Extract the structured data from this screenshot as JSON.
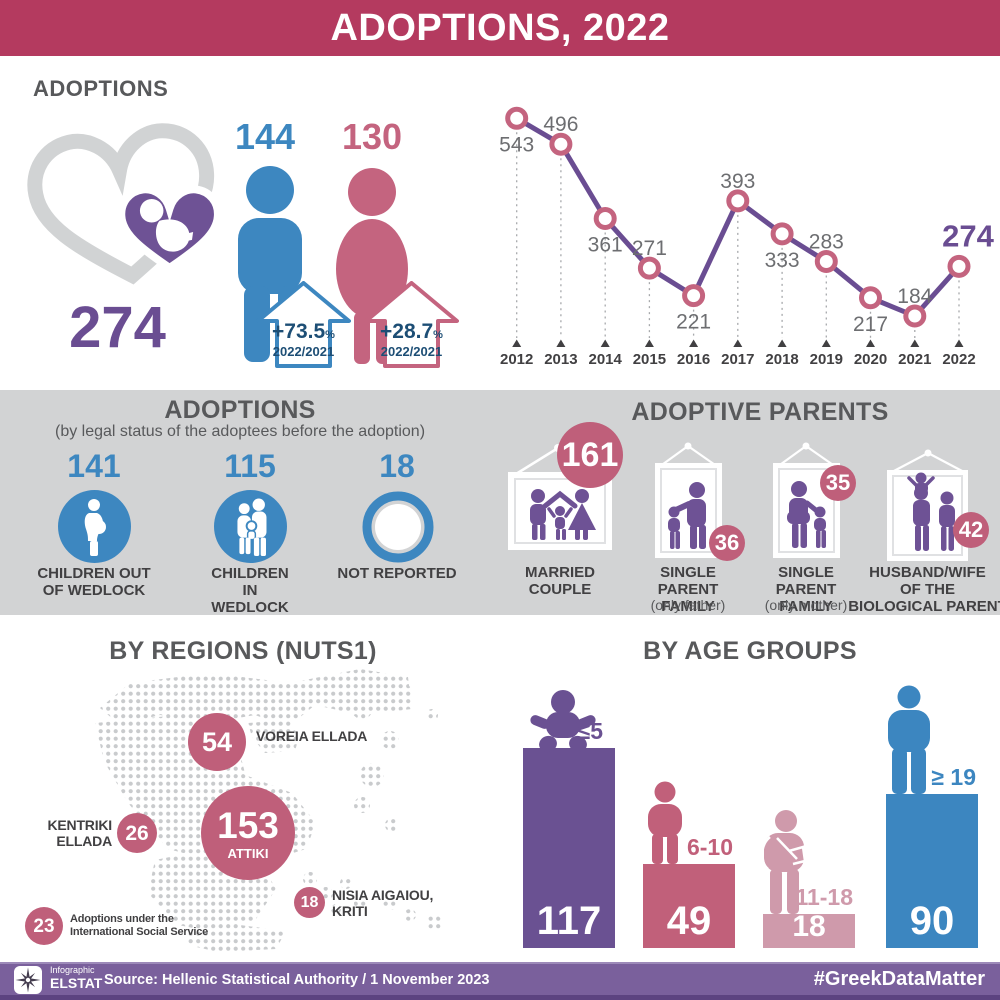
{
  "header": {
    "title": "ADOPTIONS, 2022"
  },
  "overview": {
    "section_label": "ADOPTIONS",
    "total": "274",
    "male": {
      "value": "144",
      "change": "+73.5",
      "pct": "%",
      "period": "2022/2021"
    },
    "female": {
      "value": "130",
      "change": "+28.7",
      "pct": "%",
      "period": "2022/2021"
    }
  },
  "chart_data": [
    {
      "name": "adoptions-trend",
      "type": "line",
      "x": [
        "2012",
        "2013",
        "2014",
        "2015",
        "2016",
        "2017",
        "2018",
        "2019",
        "2020",
        "2021",
        "2022"
      ],
      "values": [
        543,
        496,
        361,
        271,
        221,
        393,
        333,
        283,
        217,
        184,
        274
      ],
      "label_side": [
        "below",
        "above",
        "below",
        "above",
        "below",
        "above",
        "below",
        "above",
        "below",
        "above",
        "above"
      ],
      "highlight_index": 10,
      "line_color": "#6a4d92",
      "marker_stroke": "#c4647f",
      "marker_fill": "#ffffff",
      "grid": "dashed-droplines",
      "legend": "none"
    },
    {
      "name": "by-age-groups",
      "type": "bar",
      "title": "BY AGE GROUPS",
      "categories": [
        "≤5",
        "6-10",
        "11-18",
        "≥ 19"
      ],
      "values": [
        117,
        49,
        18,
        90
      ],
      "colors": [
        "#6a5192",
        "#c1607a",
        "#cf9aab",
        "#3c86c0"
      ],
      "icons": [
        "baby-icon",
        "child-icon",
        "teen-with-backpack-icon",
        "adult-icon"
      ],
      "value_label_color": "#ffffff"
    },
    {
      "name": "by-regions",
      "type": "bubble",
      "title": "BY REGIONS (NUTS1)",
      "bubble_color": "#bf5f7a",
      "points": [
        {
          "label": "VOREIA ELLADA",
          "label_lines": [
            "VOREIA ELLADA"
          ],
          "value": 54
        },
        {
          "label": "KENTRIKI ELLADA",
          "label_lines": [
            "KENTRIKI",
            "ELLADA"
          ],
          "value": 26
        },
        {
          "label": "ATTIKI",
          "label_lines": [
            "ATTIKI"
          ],
          "value": 153
        },
        {
          "label": "NISIA AIGAIOU, KRITI",
          "label_lines": [
            "NISIA AIGAIOU,",
            "KRITI"
          ],
          "value": 18
        },
        {
          "label": "Adoptions under the International Social Service",
          "label_lines": [
            "Adoptions under the",
            "International Social Service"
          ],
          "value": 23
        }
      ]
    }
  ],
  "legal_status": {
    "title": "ADOPTIONS",
    "subtitle": "(by legal status of the adoptees before the adoption)",
    "items": [
      {
        "value": "141",
        "label_lines": [
          "CHILDREN OUT",
          "OF WEDLOCK"
        ],
        "icon": "pregnant-woman-icon"
      },
      {
        "value": "115",
        "label_lines": [
          "CHILDREN",
          "IN WEDLOCK"
        ],
        "icon": "family-icon"
      },
      {
        "value": "18",
        "label_lines": [
          "NOT REPORTED",
          ""
        ],
        "icon": "not-reported-ring-icon"
      }
    ]
  },
  "adoptive_parents": {
    "title": "ADOPTIVE PARENTS",
    "items": [
      {
        "value": "161",
        "label_lines": [
          "MARRIED",
          "COUPLE",
          ""
        ],
        "sublabel": "",
        "icon": "married-couple-frame-icon"
      },
      {
        "value": "36",
        "label_lines": [
          "SINGLE PARENT",
          "FAMILY",
          ""
        ],
        "sublabel": "(only father)",
        "icon": "single-father-frame-icon"
      },
      {
        "value": "35",
        "label_lines": [
          "SINGLE PARENT",
          "FAMILY",
          ""
        ],
        "sublabel": "(only mother)",
        "icon": "single-mother-frame-icon"
      },
      {
        "value": "42",
        "label_lines": [
          "HUSBAND/WIFE",
          "OF THE",
          "BIOLOGICAL PARENT"
        ],
        "sublabel": "",
        "icon": "biological-parent-frame-icon"
      }
    ]
  },
  "footer": {
    "logo_line1": "Infographic",
    "logo_line2": "ELSTAT",
    "source": "Source: Hellenic Statistical Authority / 1 November 2023",
    "hashtag": "#GreekDataMatter"
  },
  "colors": {
    "header_bg": "#b43a5f",
    "purple": "#6a4d92",
    "blue": "#3d87c0",
    "rose": "#c4647f",
    "badge_rose": "#bf5f7a",
    "light_pink": "#cf9aab",
    "band_gray": "#d2d3d4",
    "footer_purple": "#7a609c"
  }
}
